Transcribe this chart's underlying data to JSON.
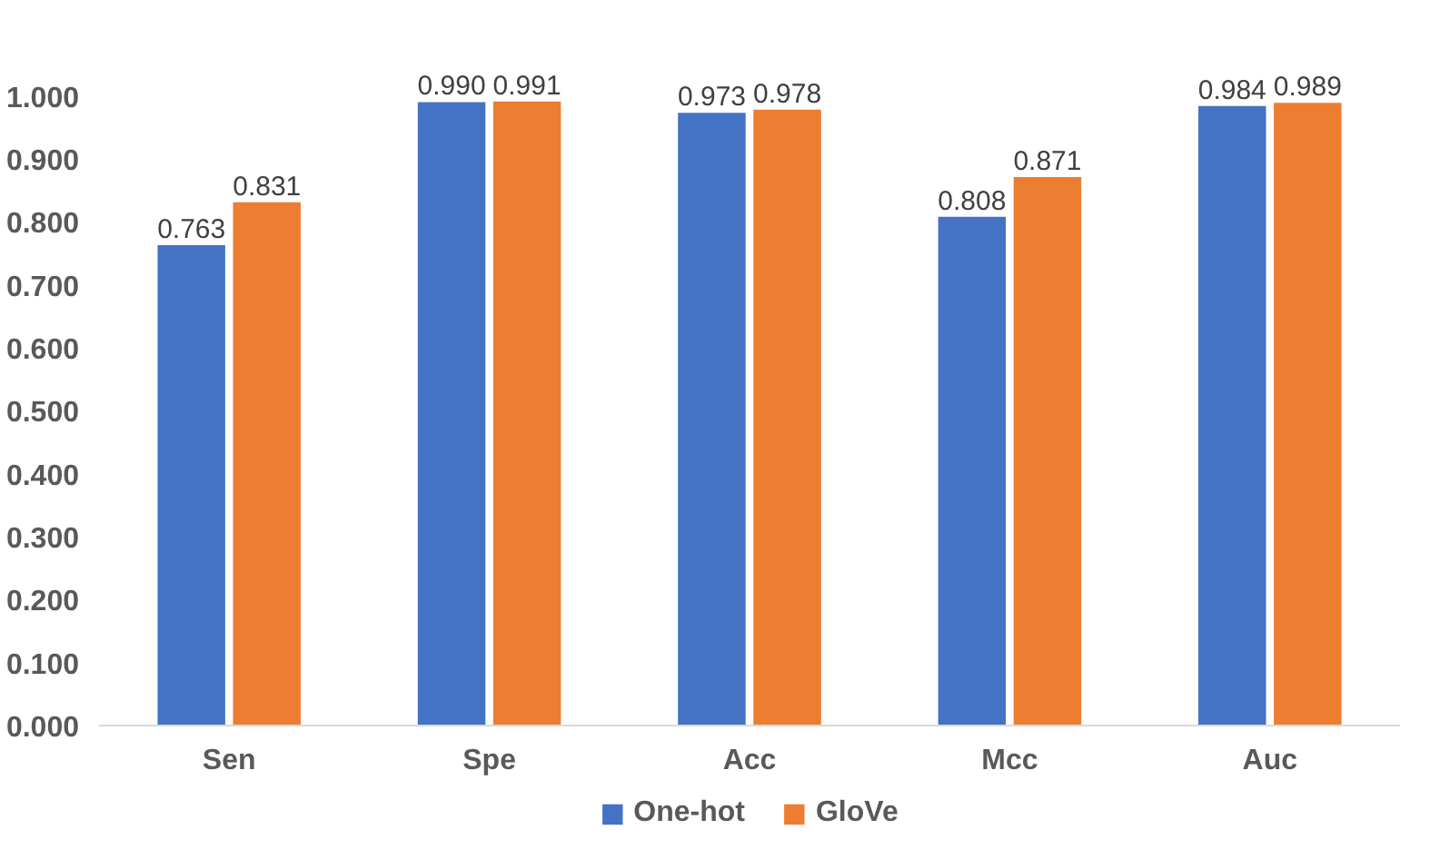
{
  "chart_data": {
    "type": "bar",
    "categories": [
      "Sen",
      "Spe",
      "Acc",
      "Mcc",
      "Auc"
    ],
    "series": [
      {
        "name": "One-hot",
        "color": "#4472c4",
        "values": [
          0.763,
          0.99,
          0.973,
          0.808,
          0.984
        ],
        "value_labels": [
          "0.763",
          "0.990",
          "0.973",
          "0.808",
          "0.984"
        ]
      },
      {
        "name": "GloVe",
        "color": "#ed7d31",
        "values": [
          0.831,
          0.991,
          0.978,
          0.871,
          0.989
        ],
        "value_labels": [
          "0.831",
          "0.991",
          "0.978",
          "0.871",
          "0.989"
        ]
      }
    ],
    "ylim": [
      0,
      1
    ],
    "yticks": [
      {
        "value": 0,
        "label": "0.000"
      },
      {
        "value": 0.1,
        "label": "0.100"
      },
      {
        "value": 0.2,
        "label": "0.200"
      },
      {
        "value": 0.3,
        "label": "0.300"
      },
      {
        "value": 0.4,
        "label": "0.400"
      },
      {
        "value": 0.5,
        "label": "0.500"
      },
      {
        "value": 0.6,
        "label": "0.600"
      },
      {
        "value": 0.7,
        "label": "0.700"
      },
      {
        "value": 0.8,
        "label": "0.800"
      },
      {
        "value": 0.9,
        "label": "0.900"
      },
      {
        "value": 1.0,
        "label": "1.000"
      }
    ],
    "grid": false,
    "legend": "bottom"
  }
}
